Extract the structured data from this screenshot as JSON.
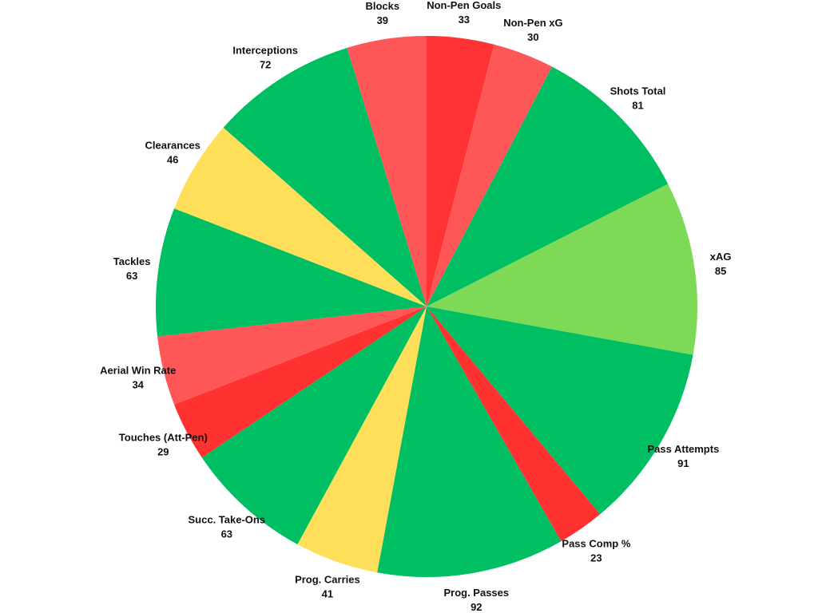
{
  "chart_data": {
    "type": "pie",
    "title": "",
    "start": "top",
    "direction": "clockwise",
    "slices": [
      {
        "label": "Non-Pen Goals",
        "value": 33,
        "color": "#ff3333"
      },
      {
        "label": "Non-Pen xG",
        "value": 30,
        "color": "#ff5757"
      },
      {
        "label": "Shots Total",
        "value": 81,
        "color": "#00bf63"
      },
      {
        "label": "xAG",
        "value": 85,
        "color": "#7ed957"
      },
      {
        "label": "Pass Attempts",
        "value": 91,
        "color": "#00bf63"
      },
      {
        "label": "Pass Comp %",
        "value": 23,
        "color": "#ff3131"
      },
      {
        "label": "Prog. Passes",
        "value": 92,
        "color": "#00bf63"
      },
      {
        "label": "Prog. Carries",
        "value": 41,
        "color": "#ffde59"
      },
      {
        "label": "Succ. Take-Ons",
        "value": 63,
        "color": "#00bf63"
      },
      {
        "label": "Touches (Att-Pen)",
        "value": 29,
        "color": "#ff3131"
      },
      {
        "label": "Aerial Win Rate",
        "value": 34,
        "color": "#ff5757"
      },
      {
        "label": "Tackles",
        "value": 63,
        "color": "#00bf63"
      },
      {
        "label": "Clearances",
        "value": 46,
        "color": "#ffde59"
      },
      {
        "label": "Interceptions",
        "value": 72,
        "color": "#00bf63"
      },
      {
        "label": "Blocks",
        "value": 39,
        "color": "#ff5757"
      }
    ]
  }
}
